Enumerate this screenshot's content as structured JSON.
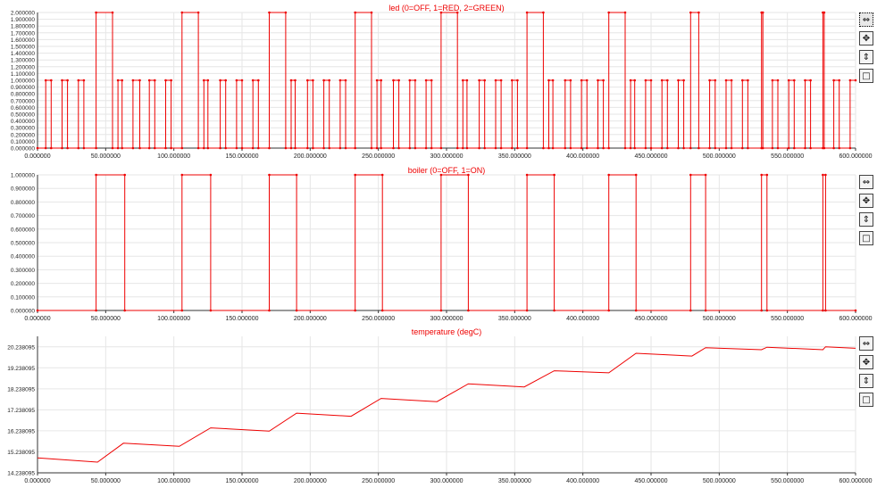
{
  "panels": [
    {
      "id": "led",
      "title": "led (0=OFF, 1=RED, 2=GREEN)",
      "yticks": [
        "0.000000",
        "0.100000",
        "0.200000",
        "0.300000",
        "0.400000",
        "0.500000",
        "0.600000",
        "0.700000",
        "0.800000",
        "0.900000",
        "1.000000",
        "1.100000",
        "1.200000",
        "1.300000",
        "1.400000",
        "1.500000",
        "1.600000",
        "1.700000",
        "1.800000",
        "1.900000",
        "2.000000"
      ],
      "xticks": [
        "0.000000",
        "50.000000",
        "100.000000",
        "150.000000",
        "200.000000",
        "250.000000",
        "300.000000",
        "350.000000",
        "400.000000",
        "450.000000",
        "500.000000",
        "550.000000",
        "600.000000"
      ]
    },
    {
      "id": "boiler",
      "title": "boiler (0=OFF, 1=ON)",
      "yticks": [
        "0.000000",
        "0.100000",
        "0.200000",
        "0.300000",
        "0.400000",
        "0.500000",
        "0.600000",
        "0.700000",
        "0.800000",
        "0.900000",
        "1.000000"
      ],
      "xticks": [
        "0.000000",
        "50.000000",
        "100.000000",
        "150.000000",
        "200.000000",
        "250.000000",
        "300.000000",
        "350.000000",
        "400.000000",
        "450.000000",
        "500.000000",
        "550.000000",
        "600.000000"
      ]
    },
    {
      "id": "temperature",
      "title": "temperature (degC)",
      "yticks": [
        "14.238095",
        "15.238095",
        "16.238095",
        "17.238095",
        "18.238095",
        "19.238095",
        "20.238095"
      ],
      "xticks": [
        "0.000000",
        "50.000000",
        "100.000000",
        "150.000000",
        "200.000000",
        "250.000000",
        "300.000000",
        "350.000000",
        "400.000000",
        "450.000000",
        "500.000000",
        "550.000000",
        "600.000000"
      ]
    }
  ],
  "toolbar_icons": [
    "fit-horizontal-icon",
    "move-icon",
    "fit-vertical-icon",
    "box-zoom-icon"
  ],
  "toolbar_glyphs": [
    "⇔",
    "✥",
    "⇕",
    "□"
  ],
  "colors": {
    "series": "#ee0000",
    "grid": "#e6e6e6",
    "axis": "#333333"
  },
  "chart_data": [
    {
      "type": "line",
      "title": "led (0=OFF, 1=RED, 2=GREEN)",
      "xlim": [
        0,
        600
      ],
      "ylim": [
        0,
        2
      ],
      "grid": true,
      "series": [
        {
          "points": [
            [
              0,
              0
            ],
            [
              6,
              0
            ],
            [
              6,
              1
            ],
            [
              10,
              1
            ],
            [
              10,
              0
            ],
            [
              18,
              0
            ],
            [
              18,
              1
            ],
            [
              22,
              1
            ],
            [
              22,
              0
            ],
            [
              30,
              0
            ],
            [
              30,
              1
            ],
            [
              34,
              1
            ],
            [
              34,
              0
            ],
            [
              43,
              0
            ],
            [
              43,
              2
            ],
            [
              55,
              2
            ],
            [
              55,
              0
            ],
            [
              59,
              0
            ],
            [
              59,
              1
            ],
            [
              62,
              1
            ],
            [
              62,
              0
            ],
            [
              70,
              0
            ],
            [
              70,
              1
            ],
            [
              75,
              1
            ],
            [
              75,
              0
            ],
            [
              82,
              0
            ],
            [
              82,
              1
            ],
            [
              86,
              1
            ],
            [
              86,
              0
            ],
            [
              94,
              0
            ],
            [
              94,
              1
            ],
            [
              98,
              1
            ],
            [
              98,
              0
            ],
            [
              106,
              0
            ],
            [
              106,
              2
            ],
            [
              118,
              2
            ],
            [
              118,
              0
            ],
            [
              122,
              0
            ],
            [
              122,
              1
            ],
            [
              125,
              1
            ],
            [
              125,
              0
            ],
            [
              134,
              0
            ],
            [
              134,
              1
            ],
            [
              138,
              1
            ],
            [
              138,
              0
            ],
            [
              146,
              0
            ],
            [
              146,
              1
            ],
            [
              150,
              1
            ],
            [
              150,
              0
            ],
            [
              158,
              0
            ],
            [
              158,
              1
            ],
            [
              162,
              1
            ],
            [
              162,
              0
            ],
            [
              170,
              0
            ],
            [
              170,
              2
            ],
            [
              182,
              2
            ],
            [
              182,
              0
            ],
            [
              186,
              0
            ],
            [
              186,
              1
            ],
            [
              189,
              1
            ],
            [
              189,
              0
            ],
            [
              198,
              0
            ],
            [
              198,
              1
            ],
            [
              202,
              1
            ],
            [
              202,
              0
            ],
            [
              210,
              0
            ],
            [
              210,
              1
            ],
            [
              214,
              1
            ],
            [
              214,
              0
            ],
            [
              222,
              0
            ],
            [
              222,
              1
            ],
            [
              226,
              1
            ],
            [
              226,
              0
            ],
            [
              233,
              0
            ],
            [
              233,
              2
            ],
            [
              245,
              2
            ],
            [
              245,
              0
            ],
            [
              249,
              0
            ],
            [
              249,
              1
            ],
            [
              252,
              1
            ],
            [
              252,
              0
            ],
            [
              261,
              0
            ],
            [
              261,
              1
            ],
            [
              265,
              1
            ],
            [
              265,
              0
            ],
            [
              273,
              0
            ],
            [
              273,
              1
            ],
            [
              277,
              1
            ],
            [
              277,
              0
            ],
            [
              285,
              0
            ],
            [
              285,
              1
            ],
            [
              289,
              1
            ],
            [
              289,
              0
            ],
            [
              296,
              0
            ],
            [
              296,
              2
            ],
            [
              308,
              2
            ],
            [
              308,
              0
            ],
            [
              312,
              0
            ],
            [
              312,
              1
            ],
            [
              315,
              1
            ],
            [
              315,
              0
            ],
            [
              324,
              0
            ],
            [
              324,
              1
            ],
            [
              328,
              1
            ],
            [
              328,
              0
            ],
            [
              336,
              0
            ],
            [
              336,
              1
            ],
            [
              340,
              1
            ],
            [
              340,
              0
            ],
            [
              348,
              0
            ],
            [
              348,
              1
            ],
            [
              352,
              1
            ],
            [
              352,
              0
            ],
            [
              359,
              0
            ],
            [
              359,
              2
            ],
            [
              371,
              2
            ],
            [
              371,
              0
            ],
            [
              375,
              0
            ],
            [
              375,
              1
            ],
            [
              378,
              1
            ],
            [
              378,
              0
            ],
            [
              387,
              0
            ],
            [
              387,
              1
            ],
            [
              391,
              1
            ],
            [
              391,
              0
            ],
            [
              399,
              0
            ],
            [
              399,
              1
            ],
            [
              403,
              1
            ],
            [
              403,
              0
            ],
            [
              411,
              0
            ],
            [
              411,
              1
            ],
            [
              415,
              1
            ],
            [
              415,
              0
            ],
            [
              419,
              0
            ],
            [
              419,
              2
            ],
            [
              431,
              2
            ],
            [
              431,
              0
            ],
            [
              435,
              0
            ],
            [
              435,
              1
            ],
            [
              438,
              1
            ],
            [
              438,
              0
            ],
            [
              446,
              0
            ],
            [
              446,
              1
            ],
            [
              450,
              1
            ],
            [
              450,
              0
            ],
            [
              458,
              0
            ],
            [
              458,
              1
            ],
            [
              462,
              1
            ],
            [
              462,
              0
            ],
            [
              470,
              0
            ],
            [
              470,
              1
            ],
            [
              474,
              1
            ],
            [
              474,
              0
            ],
            [
              479,
              0
            ],
            [
              479,
              2
            ],
            [
              485,
              2
            ],
            [
              485,
              0
            ],
            [
              493,
              0
            ],
            [
              493,
              1
            ],
            [
              497,
              1
            ],
            [
              497,
              0
            ],
            [
              505,
              0
            ],
            [
              505,
              1
            ],
            [
              509,
              1
            ],
            [
              509,
              0
            ],
            [
              517,
              0
            ],
            [
              517,
              1
            ],
            [
              521,
              1
            ],
            [
              521,
              0
            ],
            [
              531,
              0
            ],
            [
              531,
              2
            ],
            [
              532,
              2
            ],
            [
              532,
              0
            ],
            [
              539,
              0
            ],
            [
              539,
              1
            ],
            [
              543,
              1
            ],
            [
              543,
              0
            ],
            [
              551,
              0
            ],
            [
              551,
              1
            ],
            [
              555,
              1
            ],
            [
              555,
              0
            ],
            [
              563,
              0
            ],
            [
              563,
              1
            ],
            [
              567,
              1
            ],
            [
              567,
              0
            ],
            [
              576,
              0
            ],
            [
              576,
              2
            ],
            [
              577,
              2
            ],
            [
              577,
              0
            ],
            [
              584,
              0
            ],
            [
              584,
              1
            ],
            [
              588,
              1
            ],
            [
              588,
              0
            ],
            [
              596,
              0
            ],
            [
              596,
              1
            ],
            [
              600,
              1
            ]
          ]
        }
      ]
    },
    {
      "type": "line",
      "title": "boiler (0=OFF, 1=ON)",
      "xlim": [
        0,
        600
      ],
      "ylim": [
        0,
        1
      ],
      "grid": true,
      "series": [
        {
          "points": [
            [
              0,
              0
            ],
            [
              43,
              0
            ],
            [
              43,
              1
            ],
            [
              64,
              1
            ],
            [
              64,
              0
            ],
            [
              106,
              0
            ],
            [
              106,
              1
            ],
            [
              127,
              1
            ],
            [
              127,
              0
            ],
            [
              170,
              0
            ],
            [
              170,
              1
            ],
            [
              190,
              1
            ],
            [
              190,
              0
            ],
            [
              233,
              0
            ],
            [
              233,
              1
            ],
            [
              253,
              1
            ],
            [
              253,
              0
            ],
            [
              296,
              0
            ],
            [
              296,
              1
            ],
            [
              316,
              1
            ],
            [
              316,
              0
            ],
            [
              359,
              0
            ],
            [
              359,
              1
            ],
            [
              379,
              1
            ],
            [
              379,
              0
            ],
            [
              419,
              0
            ],
            [
              419,
              1
            ],
            [
              439,
              1
            ],
            [
              439,
              0
            ],
            [
              479,
              0
            ],
            [
              479,
              1
            ],
            [
              490,
              1
            ],
            [
              490,
              0
            ],
            [
              531,
              0
            ],
            [
              531,
              1
            ],
            [
              535,
              1
            ],
            [
              535,
              0
            ],
            [
              576,
              0
            ],
            [
              576,
              1
            ],
            [
              578,
              1
            ],
            [
              578,
              0
            ],
            [
              600,
              0
            ]
          ]
        }
      ]
    },
    {
      "type": "line",
      "title": "temperature (degC)",
      "xlim": [
        0,
        600
      ],
      "ylim": [
        14.238095,
        20.738095
      ],
      "grid": true,
      "series": [
        {
          "points": [
            [
              0,
              14.95
            ],
            [
              44,
              14.75
            ],
            [
              63,
              15.65
            ],
            [
              104,
              15.5
            ],
            [
              127,
              16.38
            ],
            [
              170,
              16.22
            ],
            [
              190,
              17.08
            ],
            [
              230,
              16.93
            ],
            [
              252,
              17.78
            ],
            [
              293,
              17.63
            ],
            [
              316,
              18.48
            ],
            [
              357,
              18.33
            ],
            [
              379,
              19.1
            ],
            [
              419,
              19.0
            ],
            [
              439,
              19.93
            ],
            [
              480,
              19.8
            ],
            [
              490,
              20.2
            ],
            [
              531,
              20.1
            ],
            [
              535,
              20.22
            ],
            [
              576,
              20.1
            ],
            [
              578,
              20.24
            ],
            [
              600,
              20.17
            ]
          ]
        }
      ]
    }
  ]
}
